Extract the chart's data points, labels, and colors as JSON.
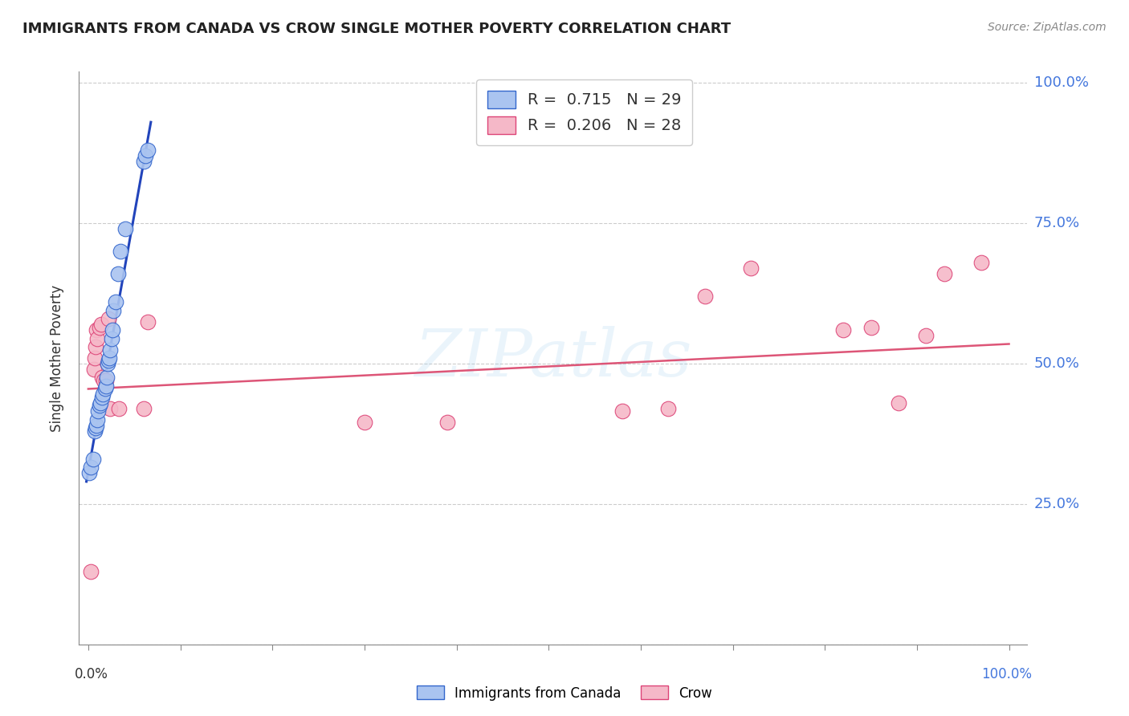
{
  "title": "IMMIGRANTS FROM CANADA VS CROW SINGLE MOTHER POVERTY CORRELATION CHART",
  "source": "Source: ZipAtlas.com",
  "ylabel": "Single Mother Poverty",
  "legend_entry1": "R =  0.715   N = 29",
  "legend_entry2": "R =  0.206   N = 28",
  "legend_label1": "Immigrants from Canada",
  "legend_label2": "Crow",
  "blue_fill": "#aac4f0",
  "blue_edge": "#3366cc",
  "pink_fill": "#f5b8c8",
  "pink_edge": "#dd4477",
  "blue_line_color": "#2244bb",
  "pink_line_color": "#dd5577",
  "watermark": "ZIPatlas",
  "blue_scatter_x": [
    0.001,
    0.003,
    0.005,
    0.007,
    0.008,
    0.009,
    0.01,
    0.011,
    0.012,
    0.013,
    0.015,
    0.016,
    0.018,
    0.019,
    0.02,
    0.021,
    0.022,
    0.023,
    0.024,
    0.025,
    0.026,
    0.027,
    0.03,
    0.032,
    0.035,
    0.04,
    0.06,
    0.062,
    0.065
  ],
  "blue_scatter_y": [
    0.305,
    0.315,
    0.33,
    0.38,
    0.385,
    0.39,
    0.4,
    0.415,
    0.425,
    0.43,
    0.44,
    0.445,
    0.455,
    0.46,
    0.475,
    0.5,
    0.505,
    0.51,
    0.525,
    0.545,
    0.56,
    0.595,
    0.61,
    0.66,
    0.7,
    0.74,
    0.86,
    0.87,
    0.88
  ],
  "pink_scatter_x": [
    0.003,
    0.006,
    0.007,
    0.008,
    0.009,
    0.01,
    0.012,
    0.014,
    0.015,
    0.017,
    0.019,
    0.022,
    0.024,
    0.033,
    0.06,
    0.065,
    0.3,
    0.39,
    0.58,
    0.63,
    0.67,
    0.72,
    0.82,
    0.85,
    0.88,
    0.91,
    0.93,
    0.97
  ],
  "pink_scatter_y": [
    0.13,
    0.49,
    0.51,
    0.53,
    0.56,
    0.545,
    0.565,
    0.57,
    0.475,
    0.47,
    0.47,
    0.58,
    0.42,
    0.42,
    0.42,
    0.575,
    0.395,
    0.395,
    0.415,
    0.42,
    0.62,
    0.67,
    0.56,
    0.565,
    0.43,
    0.55,
    0.66,
    0.68
  ],
  "blue_line_x": [
    -0.002,
    0.068
  ],
  "blue_line_y": [
    0.29,
    0.93
  ],
  "pink_line_x": [
    0.0,
    1.0
  ],
  "pink_line_y": [
    0.455,
    0.535
  ],
  "xlim": [
    -0.01,
    1.02
  ],
  "ylim": [
    0.0,
    1.02
  ],
  "yticks": [
    0.0,
    0.25,
    0.5,
    0.75,
    1.0
  ],
  "ytick_labels_right": [
    "",
    "25.0%",
    "50.0%",
    "75.0%",
    "100.0%"
  ],
  "xtick_left_label": "0.0%",
  "xtick_right_label": "100.0%"
}
